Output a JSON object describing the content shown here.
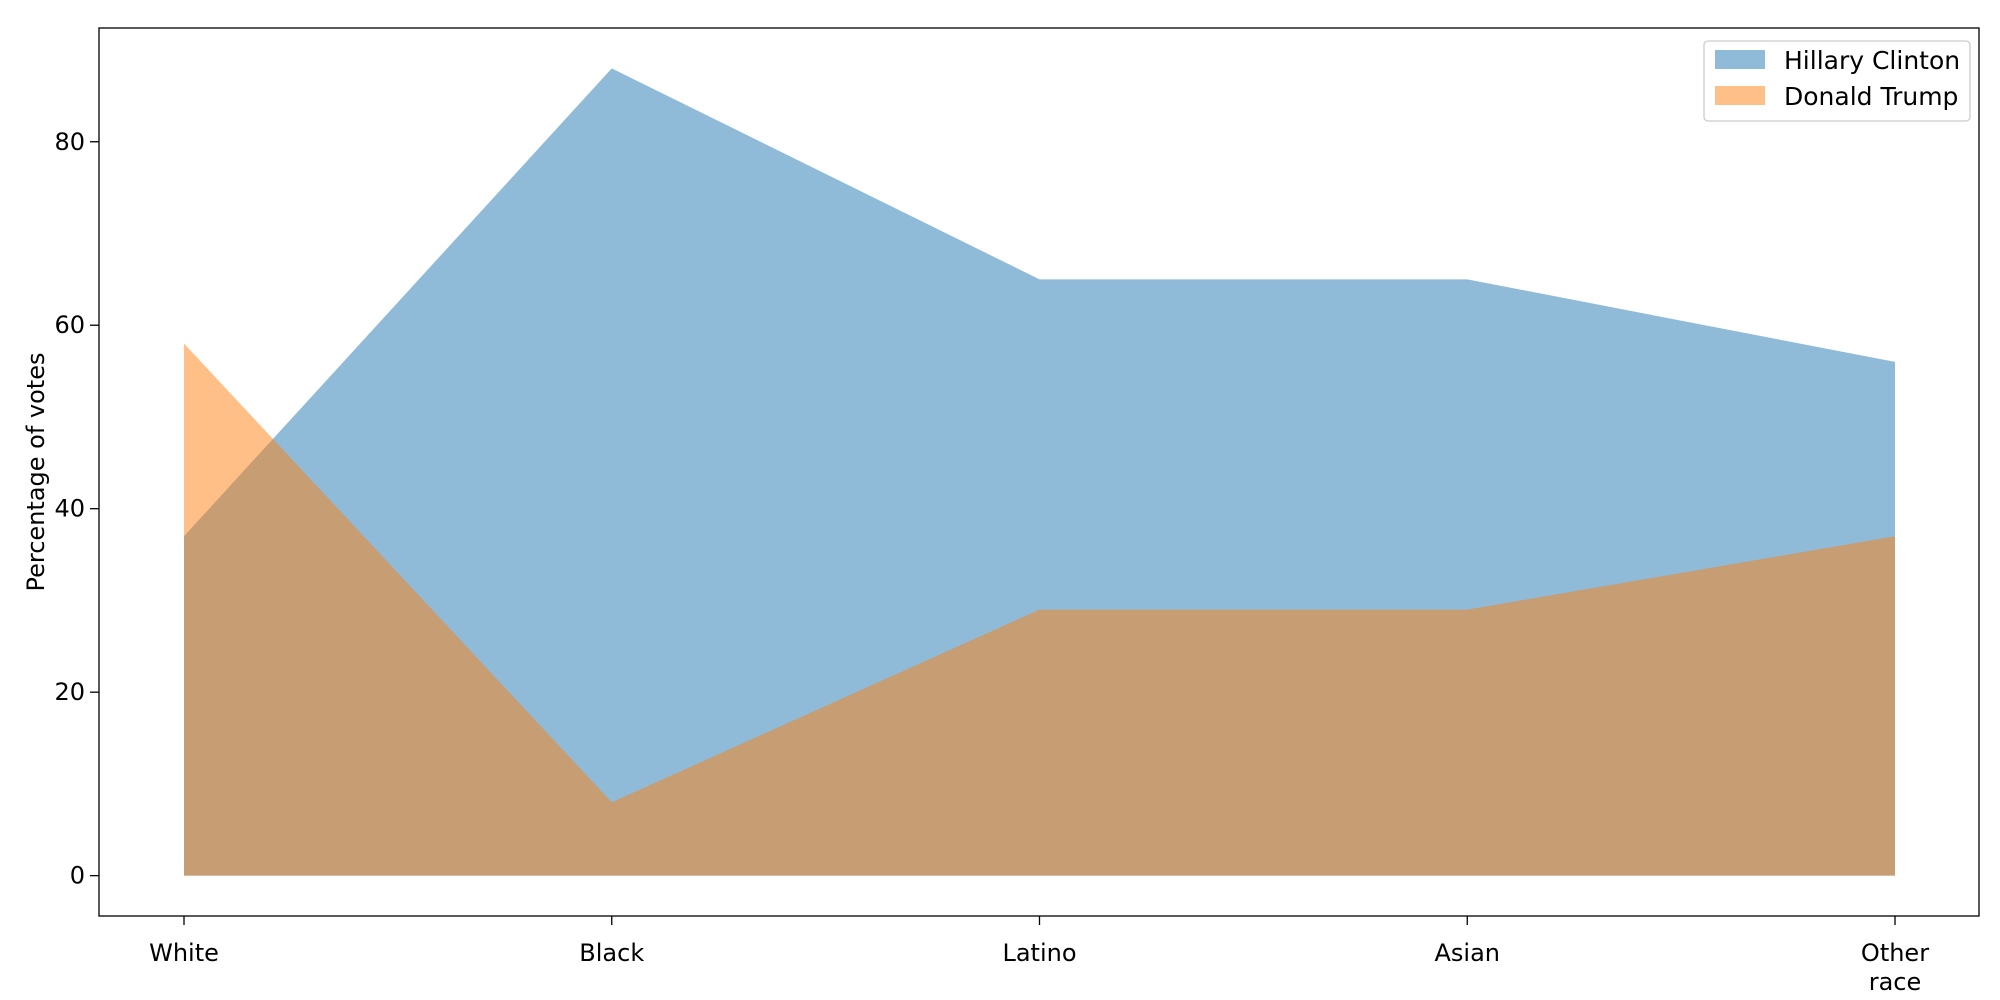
{
  "chart_data": {
    "type": "area",
    "categories": [
      "White",
      "Black",
      "Latino",
      "Asian",
      "Other race"
    ],
    "series": [
      {
        "name": "Hillary Clinton",
        "values": [
          37,
          88,
          65,
          65,
          56
        ],
        "color": "#1f77b4",
        "opacity": 0.5
      },
      {
        "name": "Donald Trump",
        "values": [
          58,
          8,
          29,
          29,
          37
        ],
        "color": "#ff7f0e",
        "opacity": 0.5
      }
    ],
    "title": "",
    "xlabel": "",
    "ylabel": "Percentage of votes",
    "ylim": [
      -4.4,
      92.4
    ],
    "yticks": [
      0,
      20,
      40,
      60,
      80
    ],
    "grid": false,
    "legend_position": "top-right"
  }
}
